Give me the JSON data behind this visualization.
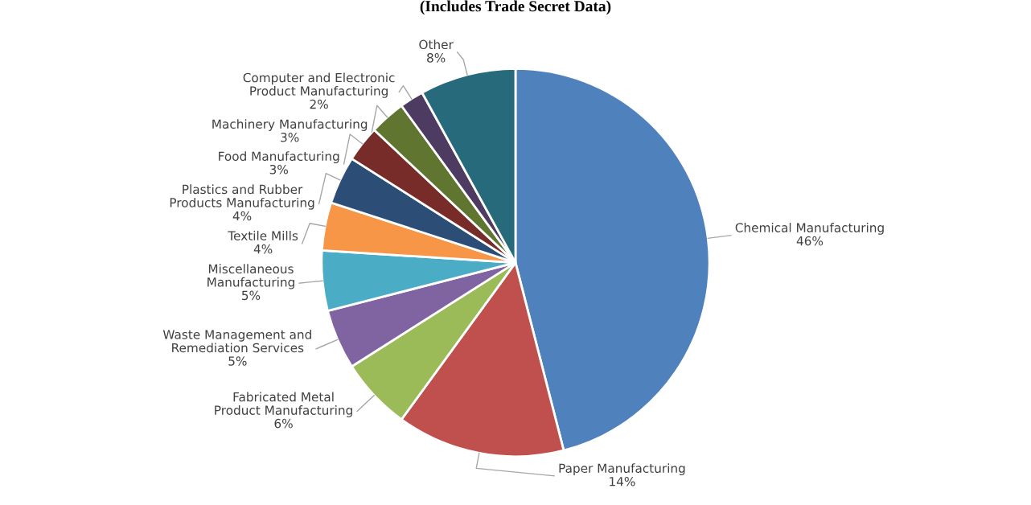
{
  "chart_data": {
    "type": "pie",
    "title": "(Includes Trade Secret Data)",
    "categories": [
      "Chemical Manufacturing",
      "Paper Manufacturing",
      "Fabricated Metal Product Manufacturing",
      "Waste Management and Remediation Services",
      "Miscellaneous Manufacturing",
      "Textile Mills",
      "Plastics and Rubber Products Manufacturing",
      "Food Manufacturing",
      "Machinery Manufacturing",
      "Computer and Electronic Product Manufacturing",
      "Other"
    ],
    "values": [
      46,
      14,
      6,
      5,
      5,
      4,
      4,
      3,
      3,
      2,
      8
    ],
    "colors": [
      "#4f81bd",
      "#c0504d",
      "#9bbb59",
      "#8064a2",
      "#4bacc6",
      "#f79646",
      "#2c4d75",
      "#772c2a",
      "#5f7530",
      "#4d3b62",
      "#276a7c"
    ],
    "value_labels": [
      "46%",
      "14%",
      "6%",
      "5%",
      "5%",
      "4%",
      "4%",
      "3%",
      "3%",
      "2%",
      "8%"
    ],
    "legend": false
  }
}
